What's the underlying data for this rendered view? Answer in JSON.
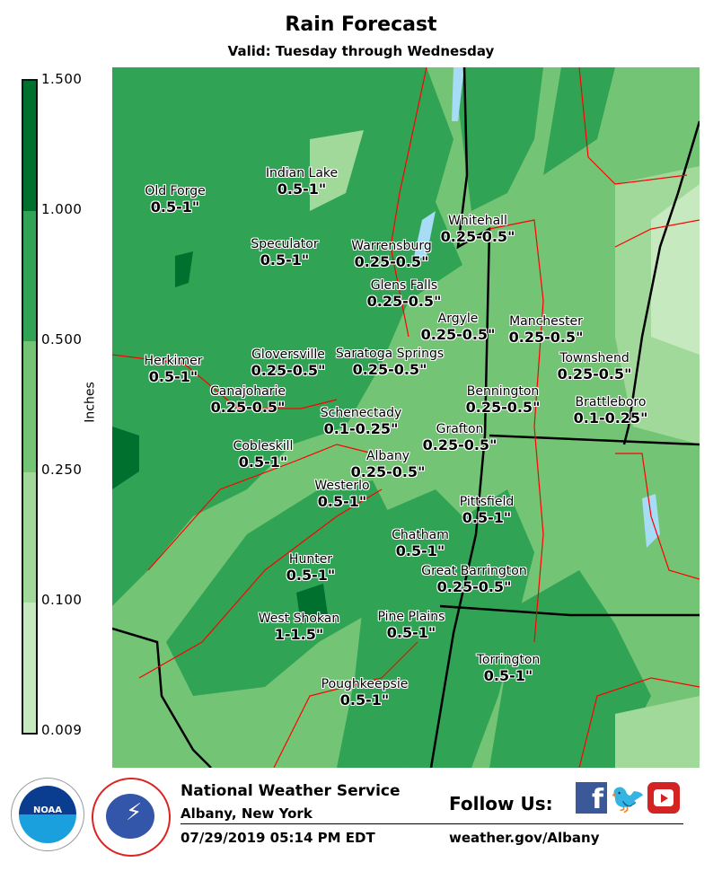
{
  "header": {
    "title": "Rain Forecast",
    "subtitle": "Valid: Tuesday through Wednesday"
  },
  "legend": {
    "units": "Inches",
    "ticks": [
      "1.500",
      "1.000",
      "0.500",
      "0.250",
      "0.100",
      "0.009"
    ],
    "colors": [
      "#00702f",
      "#31a354",
      "#74c476",
      "#a1d99b",
      "#c7e9c0"
    ]
  },
  "map": {
    "state_border_color": "#000000",
    "county_border_color": "#ff0000",
    "water_color": "#a6dcf5",
    "locations": [
      {
        "name": "Old Forge",
        "value": "0.5-1\""
      },
      {
        "name": "Indian Lake",
        "value": "0.5-1\""
      },
      {
        "name": "Speculator",
        "value": "0.5-1\""
      },
      {
        "name": "Warrensburg",
        "value": "0.25-0.5\""
      },
      {
        "name": "Whitehall",
        "value": "0.25-0.5\""
      },
      {
        "name": "Glens Falls",
        "value": "0.25-0.5\""
      },
      {
        "name": "Argyle",
        "value": "0.25-0.5\""
      },
      {
        "name": "Manchester",
        "value": "0.25-0.5\""
      },
      {
        "name": "Townshend",
        "value": "0.25-0.5\""
      },
      {
        "name": "Herkimer",
        "value": "0.5-1\""
      },
      {
        "name": "Gloversville",
        "value": "0.25-0.5\""
      },
      {
        "name": "Saratoga Springs",
        "value": "0.25-0.5\""
      },
      {
        "name": "Canajoharie",
        "value": "0.25-0.5\""
      },
      {
        "name": "Bennington",
        "value": "0.25-0.5\""
      },
      {
        "name": "Brattleboro",
        "value": "0.1-0.25\""
      },
      {
        "name": "Schenectady",
        "value": "0.1-0.25\""
      },
      {
        "name": "Grafton",
        "value": "0.25-0.5\""
      },
      {
        "name": "Albany",
        "value": "0.25-0.5\""
      },
      {
        "name": "Cobleskill",
        "value": "0.5-1\""
      },
      {
        "name": "Westerlo",
        "value": "0.5-1\""
      },
      {
        "name": "Pittsfield",
        "value": "0.5-1\""
      },
      {
        "name": "Chatham",
        "value": "0.5-1\""
      },
      {
        "name": "Hunter",
        "value": "0.5-1\""
      },
      {
        "name": "Great Barrington",
        "value": "0.25-0.5\""
      },
      {
        "name": "West Shokan",
        "value": "1-1.5\""
      },
      {
        "name": "Pine Plains",
        "value": "0.5-1\""
      },
      {
        "name": "Torrington",
        "value": "0.5-1\""
      },
      {
        "name": "Poughkeepsie",
        "value": "0.5-1\""
      }
    ]
  },
  "footer": {
    "org": "National Weather Service",
    "office": "Albany, New York",
    "timestamp": "07/29/2019 05:14 PM EDT",
    "follow": "Follow Us:",
    "url": "weather.gov/Albany",
    "noaa_logo": "NOAA",
    "nws_logo": "NATIONAL WEATHER SERVICE"
  }
}
